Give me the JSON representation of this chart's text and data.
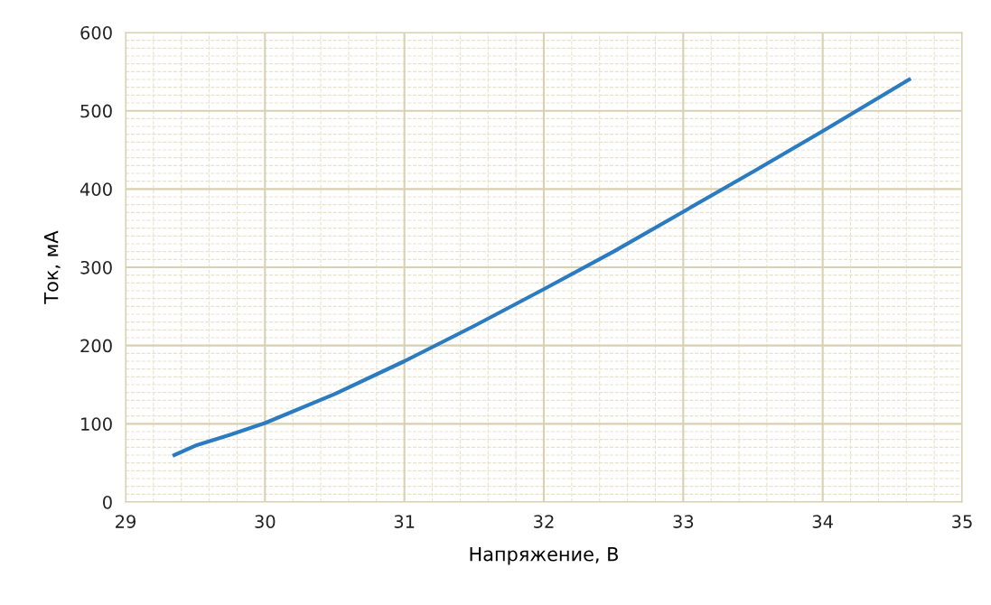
{
  "chart_data": {
    "type": "line",
    "xlabel": "Напряжение, В",
    "ylabel": "Ток, мА",
    "x": [
      29.35,
      29.5,
      29.75,
      30,
      30.5,
      31,
      31.5,
      32,
      32.5,
      33,
      33.5,
      34,
      34.62
    ],
    "series": [
      {
        "color": "#2a7bc0",
        "values": [
          60,
          72,
          86,
          101,
          138,
          180,
          225,
          272,
          320,
          371,
          422,
          474,
          540
        ]
      }
    ],
    "xlim": [
      29,
      35
    ],
    "xticks": [
      29,
      30,
      31,
      32,
      33,
      34,
      35
    ],
    "ylim": [
      0,
      600
    ],
    "yticks": [
      0,
      100,
      200,
      300,
      400,
      500,
      600
    ],
    "grid": true,
    "marker": "none",
    "line_style": "solid"
  }
}
